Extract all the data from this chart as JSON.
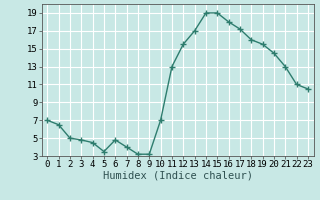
{
  "x": [
    0,
    1,
    2,
    3,
    4,
    5,
    6,
    7,
    8,
    9,
    10,
    11,
    12,
    13,
    14,
    15,
    16,
    17,
    18,
    19,
    20,
    21,
    22,
    23
  ],
  "y": [
    7,
    6.5,
    5,
    4.8,
    4.5,
    3.5,
    4.8,
    4,
    3.2,
    3.2,
    7,
    13,
    15.5,
    17,
    19,
    19,
    18,
    17.2,
    16,
    15.5,
    14.5,
    13,
    11,
    10.5
  ],
  "line_color": "#2e7d6e",
  "marker": "+",
  "marker_color": "#2e7d6e",
  "bg_color": "#c8e8e5",
  "grid_color": "#ffffff",
  "xlabel": "Humidex (Indice chaleur)",
  "ylim": [
    3,
    20
  ],
  "yticks": [
    3,
    5,
    7,
    9,
    11,
    13,
    15,
    17,
    19
  ],
  "xticks": [
    0,
    1,
    2,
    3,
    4,
    5,
    6,
    7,
    8,
    9,
    10,
    11,
    12,
    13,
    14,
    15,
    16,
    17,
    18,
    19,
    20,
    21,
    22,
    23
  ],
  "tick_fontsize": 6.5,
  "xlabel_fontsize": 7.5,
  "line_width": 1.0,
  "marker_size": 4
}
